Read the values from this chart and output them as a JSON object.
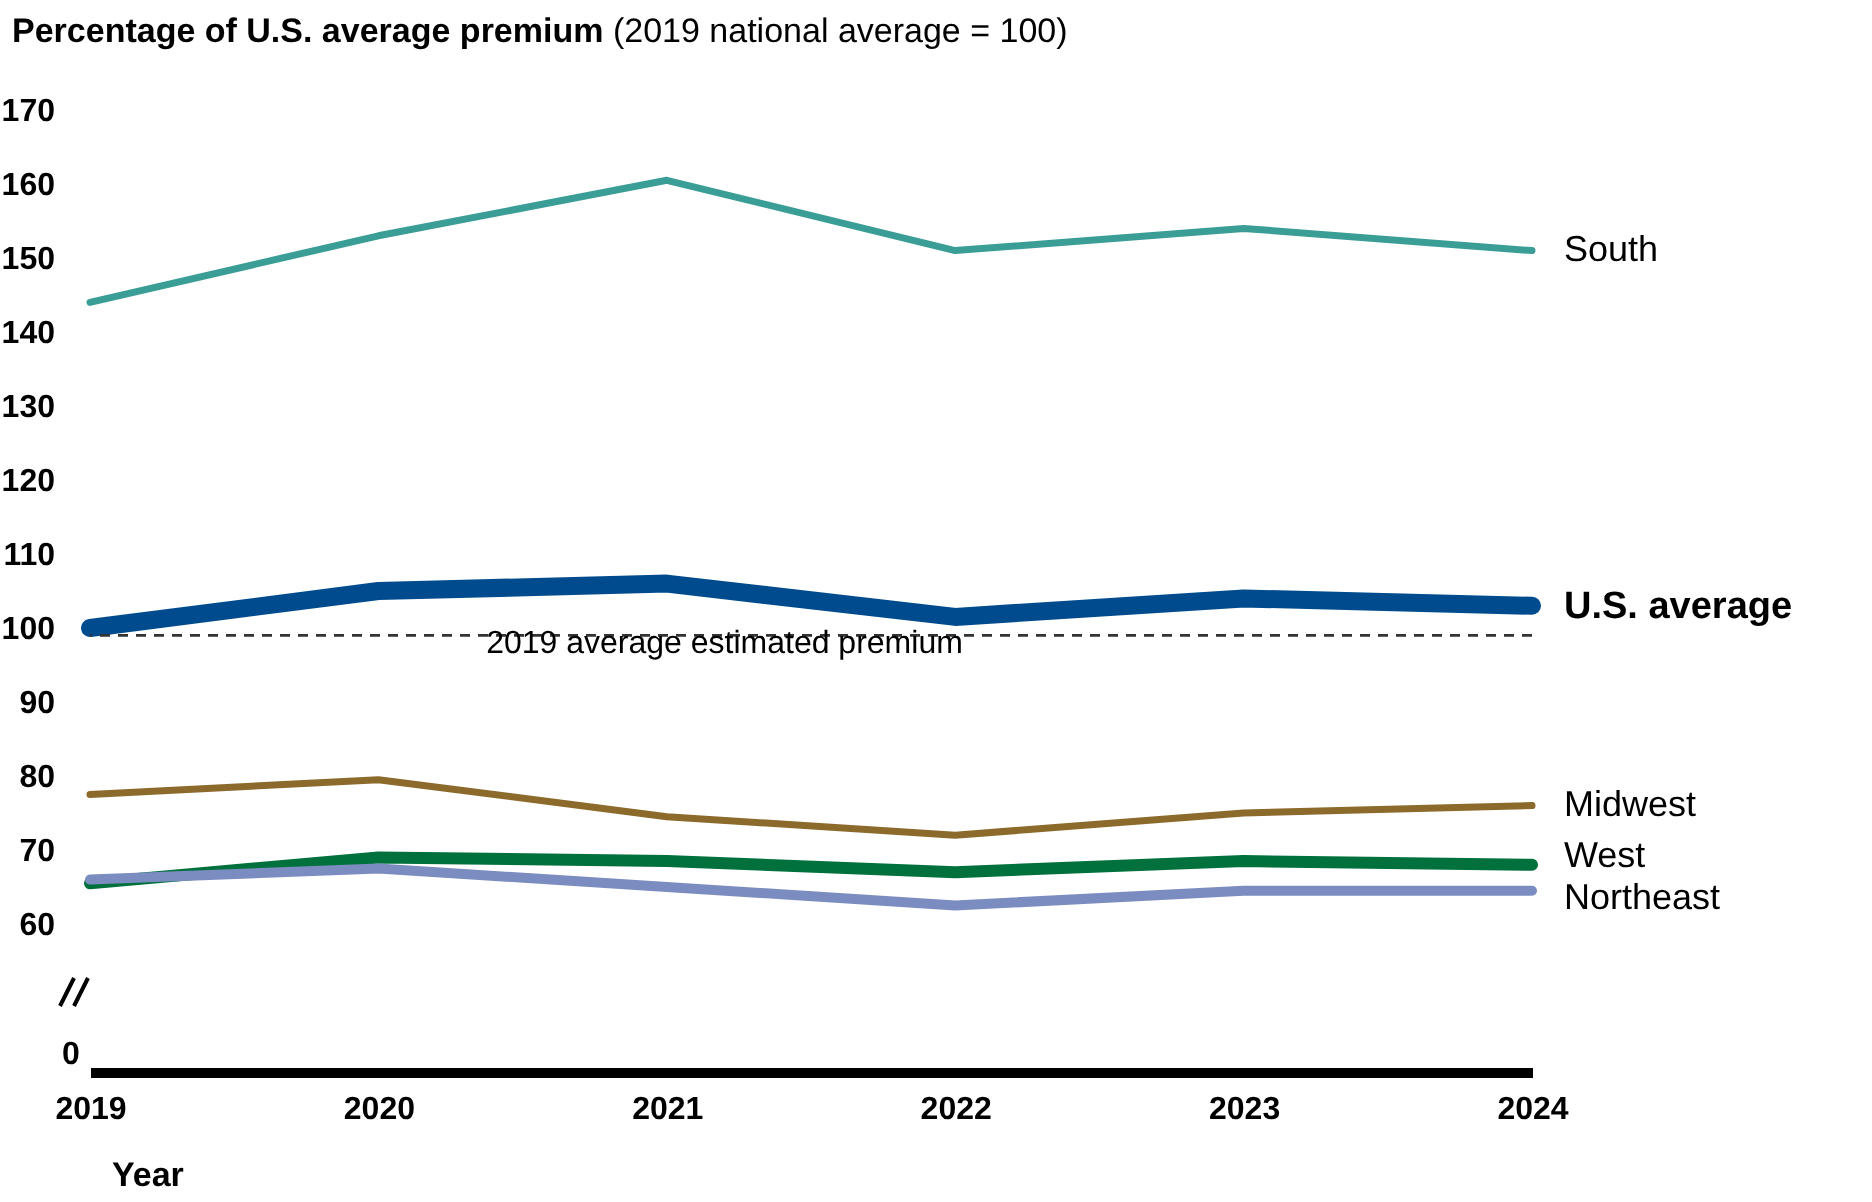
{
  "chart_data": {
    "type": "line",
    "title": "Percentage of U.S. average premium",
    "subtitle": "(2019 national average = 100)",
    "xlabel": "Year",
    "categories": [
      "2019",
      "2020",
      "2021",
      "2022",
      "2023",
      "2024"
    ],
    "series": [
      {
        "name": "South",
        "color": "#3a9e96",
        "values": [
          144,
          153,
          160.5,
          151,
          154,
          151
        ]
      },
      {
        "name": "U.S. average",
        "color": "#004b8d",
        "values": [
          100,
          105,
          106,
          101.5,
          104,
          103
        ]
      },
      {
        "name": "Midwest",
        "color": "#8b6a2b",
        "values": [
          77.5,
          79.5,
          74.5,
          72,
          75,
          76
        ]
      },
      {
        "name": "West",
        "color": "#00703c",
        "values": [
          65.5,
          69,
          68.5,
          67,
          68.5,
          68
        ]
      },
      {
        "name": "Northeast",
        "color": "#7b8cc0",
        "values": [
          66,
          67.5,
          65,
          62.5,
          64.5,
          64.5
        ]
      }
    ],
    "annotations": [
      "0"
    ],
    "ylim": [
      40,
      170
    ],
    "yticks": [
      60,
      70,
      80,
      90,
      100,
      110,
      120,
      130,
      140,
      150,
      160,
      170
    ],
    "ref_lines": [
      {
        "axis": "y",
        "value": 99,
        "label": "2019 average estimated premium",
        "color": "#333333",
        "line_style": "dashed"
      }
    ],
    "grid": false,
    "legend": false,
    "marker": "none",
    "line_style": "solid"
  }
}
